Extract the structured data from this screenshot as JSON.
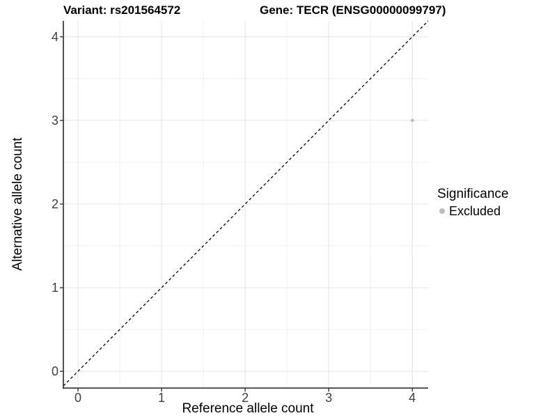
{
  "chart_data": {
    "type": "scatter",
    "title_left": "Variant: rs201564572",
    "title_right": "Gene: TECR (ENSG00000099797)",
    "xlabel": "Reference allele count",
    "ylabel": "Alternative allele count",
    "xlim": [
      -0.175,
      4.19
    ],
    "ylim": [
      -0.2,
      4.19
    ],
    "x_ticks": [
      0,
      1,
      2,
      3,
      4
    ],
    "y_ticks": [
      0,
      1,
      2,
      3,
      4
    ],
    "x_minor": [
      0.5,
      1.5,
      2.5,
      3.5
    ],
    "y_minor": [
      0.5,
      1.5,
      2.5,
      3.5
    ],
    "grid": true,
    "abline": {
      "slope": 1,
      "intercept": 0,
      "style": "dashed",
      "color": "#000000"
    },
    "series": [
      {
        "name": "Excluded",
        "color": "#bdbdbd",
        "points": [
          {
            "x": 4,
            "y": 3
          }
        ]
      }
    ],
    "legend": {
      "title": "Significance",
      "position": "right",
      "entries": [
        {
          "label": "Excluded",
          "color": "#bdbdbd"
        }
      ]
    },
    "colors": {
      "axis_line": "#3f3f3f",
      "tick_mark": "#333333",
      "tick_text": "#404040",
      "grid_major": "#e4e4e4",
      "grid_minor": "#f0f0f0",
      "background": "#ffffff"
    }
  }
}
